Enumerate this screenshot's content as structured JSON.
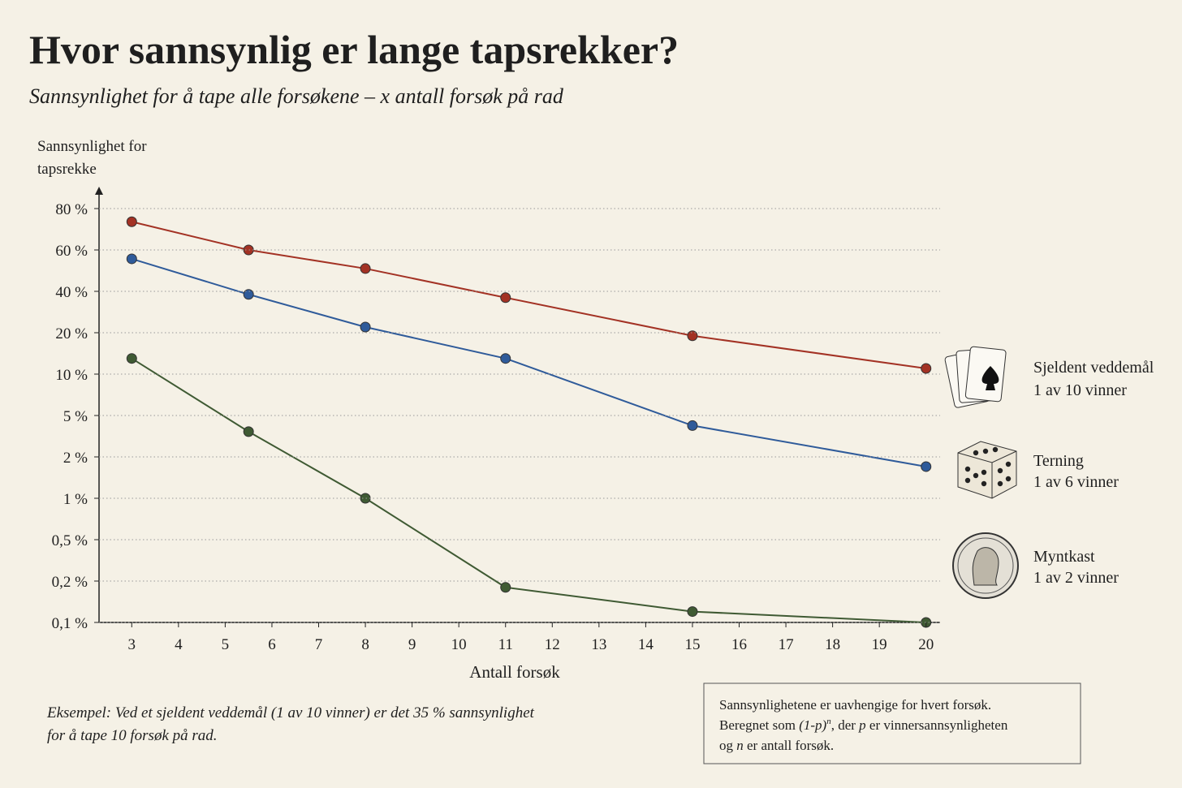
{
  "chart_data": {
    "type": "line",
    "title": "Hvor sannsynlig er lange tapsrekker?",
    "subtitle": "Sannsynlighet for å tape alle forsøkene – x antall forsøk på rad",
    "y_label": [
      "Sannsynlighet for",
      "tapsrekke"
    ],
    "x_label": "Antall forsøk",
    "x": [
      3,
      5.5,
      8,
      11,
      15,
      20
    ],
    "xlim": [
      2.3,
      20.3
    ],
    "xticks": [
      3,
      4,
      5,
      6,
      7,
      8,
      9,
      10,
      11,
      12,
      13,
      14,
      15,
      16,
      17,
      18,
      19,
      20
    ],
    "ylim": [
      0.1,
      80
    ],
    "yticks": [
      {
        "value": 80,
        "label": "80 %"
      },
      {
        "value": 60,
        "label": "60 %"
      },
      {
        "value": 40,
        "label": "40 %"
      },
      {
        "value": 20,
        "label": "20 %"
      },
      {
        "value": 10,
        "label": "10 %"
      },
      {
        "value": 5,
        "label": "5 %"
      },
      {
        "value": 2,
        "label": "2 %"
      },
      {
        "value": 1,
        "label": "1 %"
      },
      {
        "value": 0.5,
        "label": "0,5 %"
      },
      {
        "value": 0.2,
        "label": "0,2 %"
      },
      {
        "value": 0.1,
        "label": "0,1 %"
      }
    ],
    "grid": true,
    "series": [
      {
        "name": "Sjeldent veddemål",
        "description": "1 av 10 vinner",
        "icon": "cards",
        "color": "#a33224",
        "values": [
          73,
          60,
          50,
          36,
          19,
          11
        ]
      },
      {
        "name": "Terning",
        "description": "1 av 6 vinner",
        "icon": "dice",
        "color": "#2f5b9a",
        "values": [
          55,
          38,
          22,
          13,
          4,
          1.7
        ]
      },
      {
        "name": "Myntkast",
        "description": "1 av 2 vinner",
        "icon": "coin",
        "color": "#3f5a33",
        "values": [
          13,
          3.5,
          1,
          0.18,
          0.12,
          0.1
        ]
      }
    ],
    "example": [
      "Eksempel: Ved et sjeldent veddemål (1 av 10 vinner) er det 35 % sannsynlighet",
      "for å tape 10 forsøk på rad."
    ],
    "note": {
      "line1": "Sannsynlighetene er uavhengige for hvert forsøk.",
      "line2": [
        "Beregnet som ",
        "(1-p)",
        "n",
        ", der ",
        "p",
        " er vinnersannsynligheten"
      ],
      "line3": [
        "og ",
        "n",
        " er antall forsøk."
      ]
    }
  }
}
